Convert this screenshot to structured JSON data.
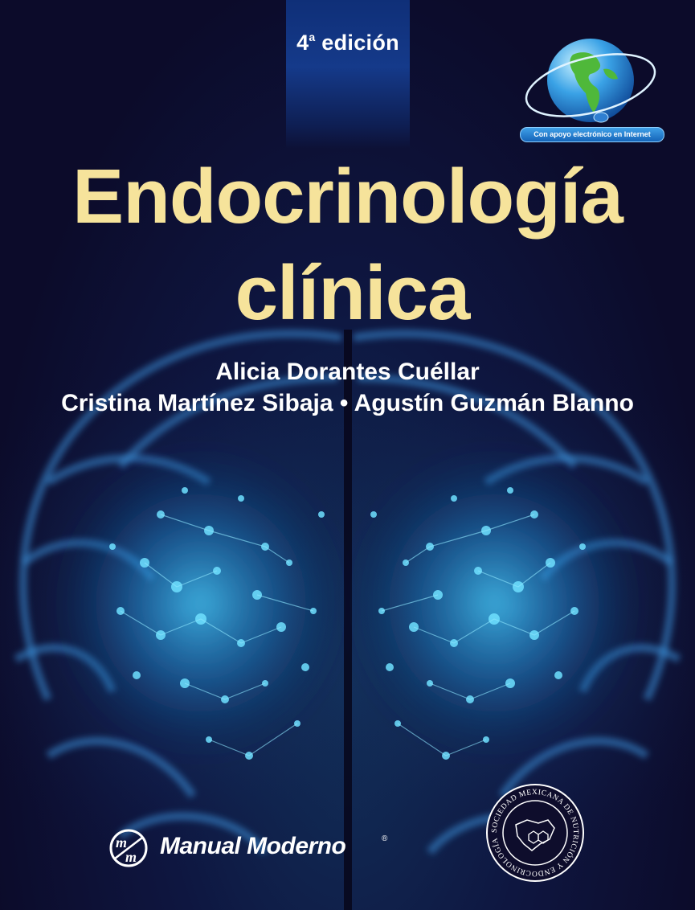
{
  "cover": {
    "edition_label": "4",
    "edition_sup": "a",
    "edition_word": "edición",
    "title_line1": "Endocrinología",
    "title_line2": "clínica",
    "author_line1": "Alicia Dorantes Cuéllar",
    "author_line2": "Cristina Martínez Sibaja • Agustín Guzmán Blanno",
    "online_badge": "Con apoyo electrónico en Internet",
    "publisher": {
      "name": "Manual Moderno",
      "registered": "®"
    },
    "seal_text": "SOCIEDAD MEXICANA DE NUTRICIÓN Y ENDOCRINOLOGÍA"
  },
  "colors": {
    "title": "#f6e39b",
    "background": "#0d0b2a",
    "neuron_glow": "#3ec8ff",
    "edition_tab": "#153a8a"
  },
  "icons": [
    "globe-icon",
    "manual-moderno-logo-icon",
    "society-seal-icon"
  ]
}
